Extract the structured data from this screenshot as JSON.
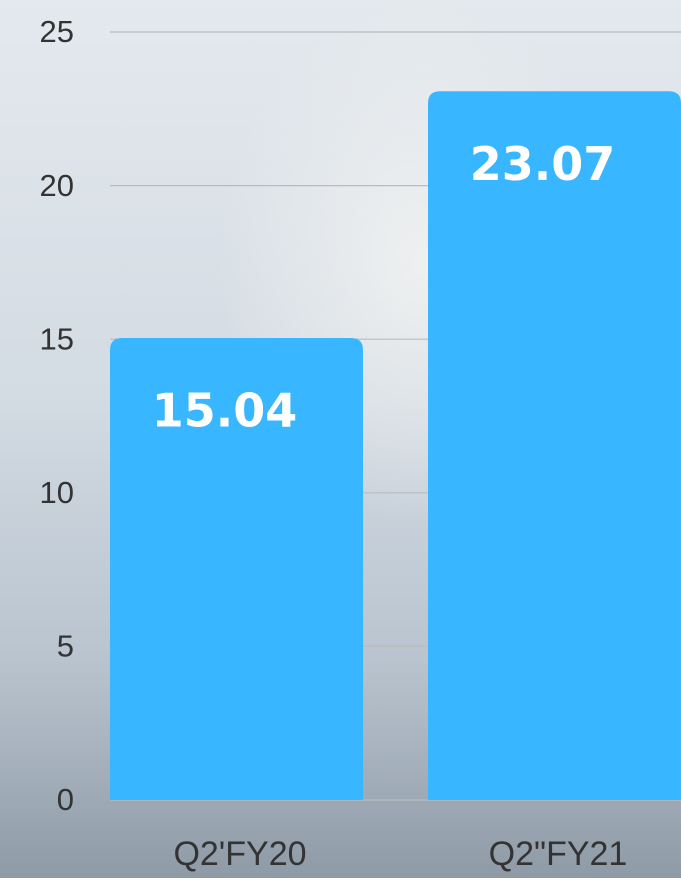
{
  "chart_data": {
    "type": "bar",
    "categories": [
      "Q2'FY20",
      "Q2\"FY21"
    ],
    "values": [
      15.04,
      23.07
    ],
    "color": "#38b6ff",
    "ylim": [
      0,
      25
    ],
    "yticks": [
      0,
      5,
      10,
      15,
      20,
      25
    ],
    "grid": true
  }
}
